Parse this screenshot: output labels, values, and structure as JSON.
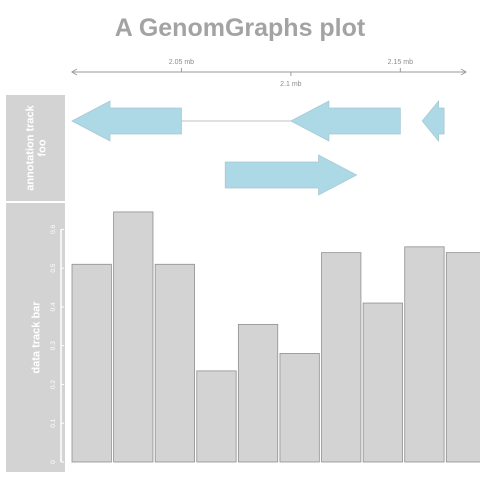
{
  "chart_data": {
    "type": "bar",
    "title": "A GenomGraphs plot",
    "genomic_axis": {
      "range_mb": [
        2.0,
        2.18
      ],
      "ticks": [
        {
          "value": 2.05,
          "label": "2.05 mb",
          "side": "top"
        },
        {
          "value": 2.1,
          "label": "2.1 mb",
          "side": "bottom"
        },
        {
          "value": 2.15,
          "label": "2.15 mb",
          "side": "top"
        }
      ]
    },
    "annotation_track": {
      "label": "annotation track foo",
      "color": "#add8e6",
      "features": [
        {
          "start": 2.0,
          "end": 2.05,
          "strand": "-",
          "row": 1
        },
        {
          "start": 2.1,
          "end": 2.15,
          "strand": "-",
          "row": 1
        },
        {
          "start": 2.16,
          "end": 2.17,
          "strand": "-",
          "row": 1
        },
        {
          "start": 2.07,
          "end": 2.13,
          "strand": "+",
          "row": 2
        }
      ],
      "connectors": [
        {
          "start": 2.05,
          "end": 2.1,
          "row": 1
        }
      ]
    },
    "data_track": {
      "label": "data track bar",
      "color": "#d3d3d3",
      "ylim": [
        0,
        0.65
      ],
      "y_ticks": [
        0,
        0.1,
        0.2,
        0.3,
        0.4,
        0.5,
        0.6
      ],
      "bars": [
        {
          "start": 2.0,
          "end": 2.018,
          "value": 0.51
        },
        {
          "start": 2.019,
          "end": 2.037,
          "value": 0.645
        },
        {
          "start": 2.038,
          "end": 2.056,
          "value": 0.51
        },
        {
          "start": 2.057,
          "end": 2.075,
          "value": 0.235
        },
        {
          "start": 2.076,
          "end": 2.094,
          "value": 0.355
        },
        {
          "start": 2.095,
          "end": 2.113,
          "value": 0.28
        },
        {
          "start": 2.114,
          "end": 2.132,
          "value": 0.54
        },
        {
          "start": 2.133,
          "end": 2.151,
          "value": 0.41
        },
        {
          "start": 2.152,
          "end": 2.17,
          "value": 0.555
        },
        {
          "start": 2.171,
          "end": 2.189,
          "value": 0.54
        }
      ]
    }
  }
}
